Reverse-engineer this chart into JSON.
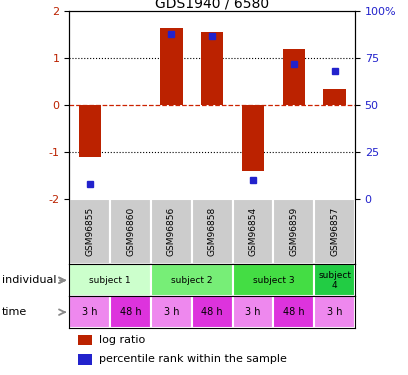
{
  "title": "GDS1940 / 6580",
  "samples": [
    "GSM96855",
    "GSM96860",
    "GSM96856",
    "GSM96858",
    "GSM96854",
    "GSM96859",
    "GSM96857"
  ],
  "log_ratio": [
    -1.1,
    0.0,
    1.65,
    1.55,
    -1.4,
    1.2,
    0.35
  ],
  "percentile_rank": [
    8,
    null,
    88,
    87,
    10,
    72,
    68
  ],
  "ylim_left": [
    -2,
    2
  ],
  "ylim_right": [
    0,
    100
  ],
  "yticks_left": [
    -2,
    -1,
    0,
    1,
    2
  ],
  "yticks_right": [
    0,
    25,
    50,
    75,
    100
  ],
  "ytick_labels_right": [
    "0",
    "25",
    "50",
    "75",
    "100%"
  ],
  "bar_color": "#bb2200",
  "dot_color": "#2222cc",
  "zero_line_color": "#cc2200",
  "subjects": [
    {
      "label": "subject 1",
      "start": 0,
      "end": 2,
      "color": "#ccffcc"
    },
    {
      "label": "subject 2",
      "start": 2,
      "end": 4,
      "color": "#77ee77"
    },
    {
      "label": "subject 3",
      "start": 4,
      "end": 6,
      "color": "#44dd44"
    },
    {
      "label": "subject\n4",
      "start": 6,
      "end": 7,
      "color": "#22cc44"
    }
  ],
  "times": [
    {
      "label": "3 h",
      "col": 0,
      "color": "#ee88ee"
    },
    {
      "label": "48 h",
      "col": 1,
      "color": "#dd33dd"
    },
    {
      "label": "3 h",
      "col": 2,
      "color": "#ee88ee"
    },
    {
      "label": "48 h",
      "col": 3,
      "color": "#dd33dd"
    },
    {
      "label": "3 h",
      "col": 4,
      "color": "#ee88ee"
    },
    {
      "label": "48 h",
      "col": 5,
      "color": "#dd33dd"
    },
    {
      "label": "3 h",
      "col": 6,
      "color": "#ee88ee"
    }
  ],
  "sample_bg_color": "#cccccc",
  "legend_bar_label": "log ratio",
  "legend_dot_label": "percentile rank within the sample",
  "individual_label": "individual",
  "time_label": "time",
  "bar_width": 0.55
}
